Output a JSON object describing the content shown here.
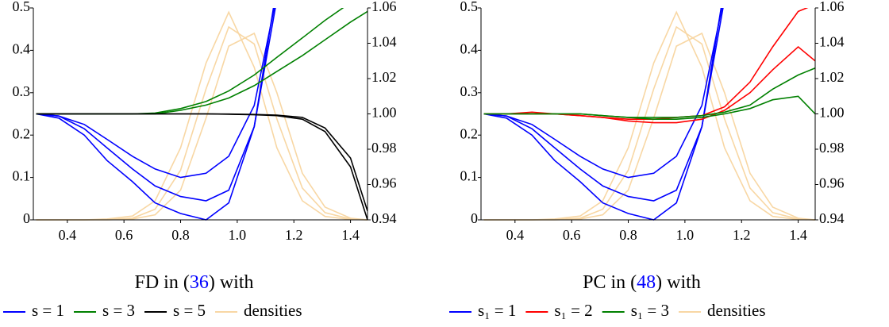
{
  "chart_data": [
    {
      "type": "line",
      "caption": [
        "FD in (",
        "36",
        ") with"
      ],
      "ref_color": "#0000ff",
      "x": [
        0.29,
        0.37,
        0.46,
        0.54,
        0.63,
        0.71,
        0.8,
        0.89,
        0.97,
        1.06,
        1.14,
        1.23,
        1.31,
        1.4,
        1.46
      ],
      "xlim": [
        0.28,
        1.46
      ],
      "xticks": [
        0.4,
        0.6,
        0.8,
        {
          "value": 1,
          "label": "1.0"
        },
        1.2,
        1.4
      ],
      "ylim": [
        0,
        0.5
      ],
      "yticks": [
        0,
        0.1,
        0.2,
        0.3,
        0.4,
        0.5
      ],
      "y2lim": [
        0.94,
        1.06
      ],
      "y2ticks": [
        0.94,
        0.96,
        0.98,
        {
          "value": 1,
          "label": "1.00"
        },
        1.02,
        1.04,
        1.06
      ],
      "series": [
        {
          "name": "s = 1",
          "color": "#0000ff",
          "axis": "y",
          "values": [
            [
              0.25,
              0.24,
              0.2,
              0.14,
              0.09,
              0.04,
              0.015,
              0,
              0.04,
              0.22,
              0.55,
              null,
              null,
              null,
              null
            ],
            [
              0.25,
              0.245,
              0.215,
              0.17,
              0.12,
              0.08,
              0.055,
              0.045,
              0.07,
              0.22,
              0.52,
              null,
              null,
              null,
              null
            ],
            [
              0.25,
              0.245,
              0.225,
              0.19,
              0.15,
              0.12,
              0.1,
              0.11,
              0.15,
              0.27,
              0.53,
              null,
              null,
              null,
              null
            ]
          ]
        },
        {
          "name": "s = 3",
          "color": "#008000",
          "axis": "y2",
          "values": [
            [
              1,
              1,
              1,
              1,
              1,
              1.0005,
              1.003,
              1.007,
              1.013,
              1.022,
              1.032,
              1.043,
              1.053,
              1.063,
              null
            ],
            [
              1,
              1,
              1,
              1,
              1,
              1,
              1.002,
              1.005,
              1.009,
              1.016,
              1.024,
              1.033,
              1.042,
              1.052,
              1.058
            ]
          ]
        },
        {
          "name": "s = 5",
          "color": "#000000",
          "axis": "y2",
          "values": [
            [
              1,
              1,
              1,
              1,
              1,
              1,
              1,
              1,
              0.9998,
              0.9995,
              0.999,
              0.997,
              0.99,
              0.97,
              0.94
            ],
            [
              1,
              1,
              1,
              1,
              1,
              1,
              1,
              1,
              0.9999,
              0.9997,
              0.9993,
              0.998,
              0.992,
              0.975,
              0.945
            ]
          ]
        },
        {
          "name": "densities",
          "color": "#f8d7a4",
          "axis": "y",
          "values": [
            [
              0,
              0,
              0,
              0.001,
              0.004,
              0.025,
              0.117,
              0.309,
              0.455,
              0.415,
              0.238,
              0.075,
              0.017,
              0.002,
              0
            ],
            [
              0,
              0,
              0,
              0.002,
              0.009,
              0.045,
              0.17,
              0.37,
              0.49,
              0.36,
              0.17,
              0.045,
              0.008,
              0.001,
              0
            ],
            [
              0,
              0,
              0,
              0,
              0.002,
              0.012,
              0.07,
              0.24,
              0.41,
              0.44,
              0.3,
              0.11,
              0.03,
              0.004,
              0
            ]
          ]
        }
      ]
    },
    {
      "type": "line",
      "caption": [
        "PC in (",
        "48",
        ") with"
      ],
      "ref_color": "#0000ff",
      "x": [
        0.29,
        0.37,
        0.46,
        0.54,
        0.63,
        0.71,
        0.8,
        0.89,
        0.97,
        1.06,
        1.14,
        1.23,
        1.31,
        1.4,
        1.46
      ],
      "xlim": [
        0.28,
        1.46
      ],
      "xticks": [
        0.4,
        0.6,
        0.8,
        {
          "value": 1,
          "label": "1.0"
        },
        1.2,
        1.4
      ],
      "ylim": [
        0,
        0.5
      ],
      "yticks": [
        0,
        0.1,
        0.2,
        0.3,
        0.4,
        0.5
      ],
      "y2lim": [
        0.94,
        1.06
      ],
      "y2ticks": [
        0.94,
        0.96,
        0.98,
        {
          "value": 1,
          "label": "1.00"
        },
        1.02,
        1.04,
        1.06
      ],
      "series": [
        {
          "name": "s₁ = 1",
          "color": "#0000ff",
          "axis": "y",
          "values": [
            [
              0.25,
              0.24,
              0.2,
              0.14,
              0.09,
              0.04,
              0.015,
              0,
              0.04,
              0.22,
              0.55,
              null,
              null,
              null,
              null
            ],
            [
              0.25,
              0.245,
              0.215,
              0.17,
              0.12,
              0.08,
              0.055,
              0.045,
              0.07,
              0.22,
              0.52,
              null,
              null,
              null,
              null
            ],
            [
              0.25,
              0.245,
              0.225,
              0.19,
              0.15,
              0.12,
              0.1,
              0.11,
              0.15,
              0.27,
              0.53,
              null,
              null,
              null,
              null
            ]
          ]
        },
        {
          "name": "s₁ = 2",
          "color": "#ff0000",
          "axis": "y2",
          "values": [
            [
              1,
              1,
              1.001,
              1,
              0.999,
              0.998,
              0.997,
              0.997,
              0.998,
              0.999,
              1.004,
              1.018,
              1.038,
              1.058,
              1.062
            ],
            [
              1,
              1,
              1,
              1,
              0.999,
              0.998,
              0.996,
              0.995,
              0.995,
              0.997,
              1.002,
              1.012,
              1.025,
              1.038,
              1.03
            ]
          ]
        },
        {
          "name": "s₁ = 3",
          "color": "#008000",
          "axis": "y2",
          "values": [
            [
              1,
              1,
              1,
              1,
              1,
              0.999,
              0.998,
              0.998,
              0.998,
              0.999,
              1.001,
              1.005,
              1.014,
              1.022,
              1.026
            ],
            [
              1,
              1,
              1,
              1,
              1,
              0.999,
              0.998,
              0.997,
              0.997,
              0.998,
              1,
              1.003,
              1.008,
              1.01,
              1
            ]
          ]
        },
        {
          "name": "densities",
          "color": "#f8d7a4",
          "axis": "y",
          "values": [
            [
              0,
              0,
              0,
              0.001,
              0.004,
              0.025,
              0.117,
              0.309,
              0.455,
              0.415,
              0.238,
              0.075,
              0.017,
              0.002,
              0
            ],
            [
              0,
              0,
              0,
              0.002,
              0.009,
              0.045,
              0.17,
              0.37,
              0.49,
              0.36,
              0.17,
              0.045,
              0.008,
              0.001,
              0
            ],
            [
              0,
              0,
              0,
              0,
              0.002,
              0.012,
              0.07,
              0.24,
              0.41,
              0.44,
              0.3,
              0.11,
              0.03,
              0.004,
              0
            ]
          ]
        }
      ]
    }
  ]
}
